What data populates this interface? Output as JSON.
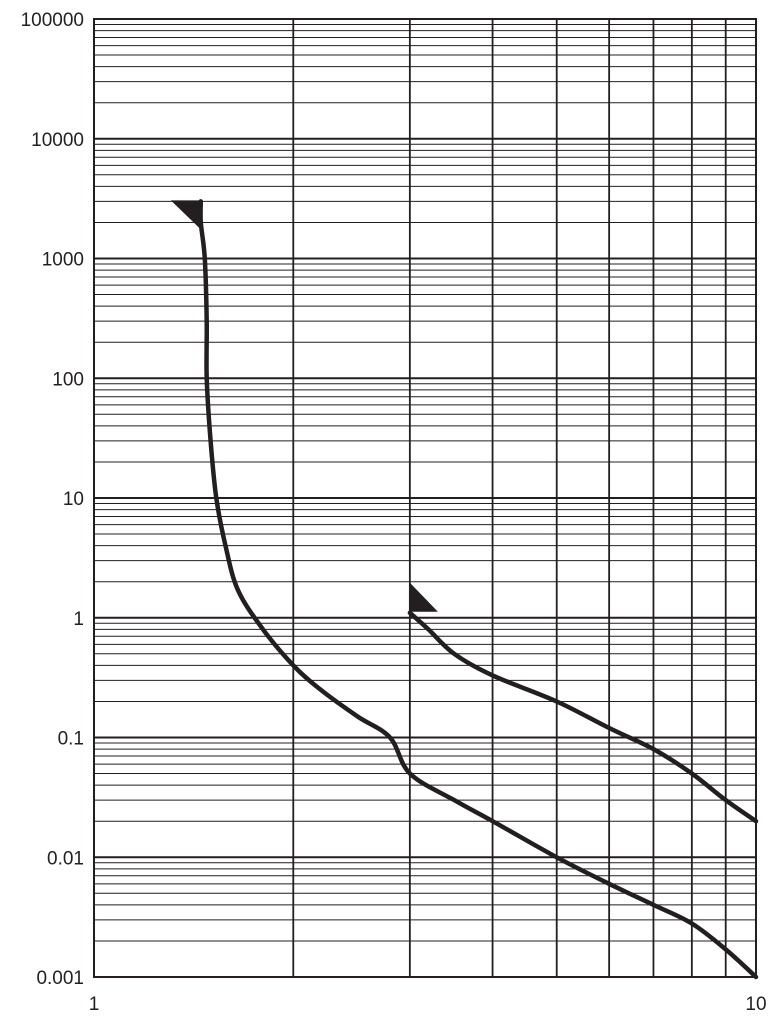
{
  "chart_data": {
    "type": "line",
    "title": "",
    "xlabel": "",
    "ylabel": "",
    "x_scale": "log",
    "y_scale": "log",
    "xlim": [
      1,
      10
    ],
    "ylim": [
      0.001,
      100000
    ],
    "grid": true,
    "x_tick_labels": [
      "1",
      "10"
    ],
    "y_tick_labels": [
      "100000",
      "10000",
      "1000",
      "100",
      "10",
      "1",
      "0.1",
      "0.01",
      "0.001"
    ],
    "line_color": "#231f20",
    "series": [
      {
        "points": [
          [
            1.45,
            3000
          ],
          [
            1.45,
            2000
          ],
          [
            1.47,
            1000
          ],
          [
            1.48,
            300
          ],
          [
            1.48,
            100
          ],
          [
            1.5,
            30
          ],
          [
            1.53,
            10
          ],
          [
            1.58,
            4
          ],
          [
            1.65,
            1.7
          ],
          [
            1.8,
            0.8
          ],
          [
            2.0,
            0.4
          ],
          [
            2.2,
            0.25
          ],
          [
            2.5,
            0.15
          ],
          [
            2.8,
            0.1
          ],
          [
            3.0,
            0.05
          ],
          [
            3.5,
            0.03
          ],
          [
            4.0,
            0.02
          ],
          [
            5.0,
            0.01
          ],
          [
            6.0,
            0.006
          ],
          [
            7.0,
            0.004
          ],
          [
            8.0,
            0.0028
          ],
          [
            9.0,
            0.0017
          ],
          [
            10.0,
            0.001
          ]
        ]
      },
      {
        "points": [
          [
            3.0,
            1.1
          ],
          [
            3.2,
            0.8
          ],
          [
            3.5,
            0.5
          ],
          [
            4.0,
            0.33
          ],
          [
            5.0,
            0.2
          ],
          [
            6.0,
            0.12
          ],
          [
            7.0,
            0.08
          ],
          [
            8.0,
            0.05
          ],
          [
            9.0,
            0.03
          ],
          [
            10.0,
            0.02
          ]
        ]
      }
    ]
  }
}
